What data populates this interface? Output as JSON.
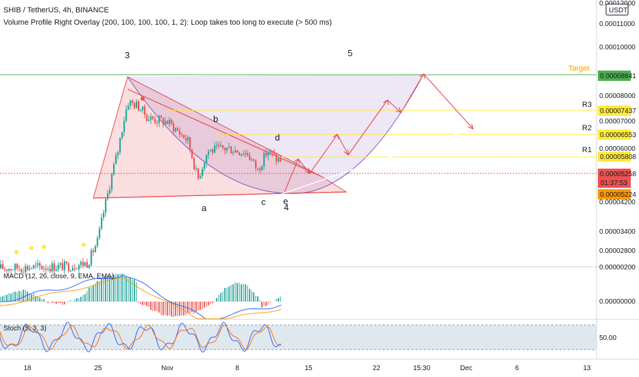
{
  "header": {
    "symbol_line": "SHIB / TetherUS, 4h, BINANCE",
    "indicator_line": "Volume Profile Right Overlay (200, 100, 100, 100, 1, 2): Loop takes too long to execute (> 500 ms)"
  },
  "currency_badge": "USDT",
  "colors": {
    "up": "#26a69a",
    "down": "#ef5350",
    "target": "#4caf50",
    "resistance": "#ffeb3b",
    "pattern": "#e8494d",
    "trend": "#ffffff",
    "current_price": "#ef5350",
    "macd": "#2962ff",
    "signal": "#ff9800",
    "stoch_k": "#2962ff",
    "stoch_d": "#ff6d00"
  },
  "chart_data": {
    "type": "candlestick",
    "price_axis_ticks": [
      "0.00012000",
      "0.00011000",
      "0.00010000",
      "0.00008000",
      "0.00007000",
      "0.00006000",
      "0.00004200",
      "0.00003400",
      "0.00002800"
    ],
    "time_axis_ticks": [
      "18",
      "25",
      "Nov",
      "8",
      "15",
      "22",
      "15:30",
      "Dec",
      "6",
      "13"
    ],
    "levels": [
      {
        "name": "Target",
        "value": "0.00008841"
      },
      {
        "name": "R3",
        "value": "0.00007437"
      },
      {
        "name": "R2",
        "value": "0.00006553"
      },
      {
        "name": "R1",
        "value": "0.00005808"
      }
    ],
    "current_price": "0.00005258",
    "countdown": "01:37:53",
    "low_label": "0.00005224",
    "wave_labels": [
      "3",
      "5",
      "b",
      "d",
      "a",
      "c",
      "e",
      "4"
    ],
    "close_path": [
      {
        "x": "Oct 14",
        "y": 2.52e-05
      },
      {
        "x": "Oct 18",
        "y": 2.54e-05
      },
      {
        "x": "Oct 22",
        "y": 2.56e-05
      },
      {
        "x": "Oct 24",
        "y": 2.62e-05
      },
      {
        "x": "Oct 25",
        "y": 3.05e-05
      },
      {
        "x": "Oct 26",
        "y": 4.2e-05
      },
      {
        "x": "Oct 27",
        "y": 5.6e-05
      },
      {
        "x": "Oct 28",
        "y": 7.8e-05
      },
      {
        "x": "Oct 29",
        "y": 7.6e-05
      },
      {
        "x": "Oct 30",
        "y": 7e-05
      },
      {
        "x": "Nov 1",
        "y": 6.8e-05
      },
      {
        "x": "Nov 3",
        "y": 6e-05
      },
      {
        "x": "Nov 4",
        "y": 4.6e-05
      },
      {
        "x": "Nov 5",
        "y": 5.6e-05
      },
      {
        "x": "Nov 7",
        "y": 5.7e-05
      },
      {
        "x": "Nov 9",
        "y": 5.5e-05
      },
      {
        "x": "Nov 10",
        "y": 4.9e-05
      },
      {
        "x": "Nov 11",
        "y": 5.6e-05
      },
      {
        "x": "Nov 12",
        "y": 5.26e-05
      }
    ],
    "macd_label": "MACD (12, 26, close, 9, EMA, EMA)",
    "macd_axis_ticks": [
      "0.00000200",
      "0.00000000"
    ],
    "stoch_label": "Stoch (5, 3, 3)",
    "stoch_axis_ticks": [
      "50.00"
    ]
  }
}
